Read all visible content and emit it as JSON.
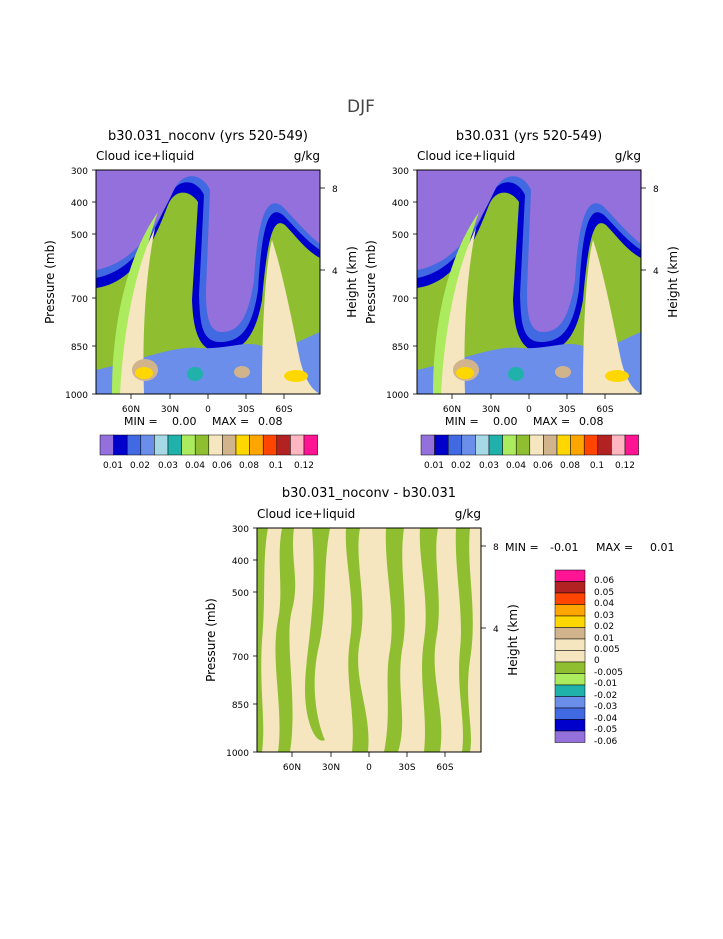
{
  "page_title": "DJF",
  "chart_data": [
    {
      "type": "contour",
      "title": "b30.031_noconv (yrs 520-549)",
      "left_subtitle": "Cloud ice+liquid",
      "right_subtitle": "g/kg",
      "ylabel": "Pressure (mb)",
      "y2label": "Height (km)",
      "x_ticks": [
        "60N",
        "30N",
        "0",
        "30S",
        "60S"
      ],
      "y_ticks": [
        "300",
        "400",
        "500",
        "700",
        "850",
        "1000"
      ],
      "y2_ticks": [
        "8",
        "4"
      ],
      "min_label": "MIN =",
      "min_value": "0.00",
      "max_label": "MAX =",
      "max_value": "0.08",
      "colorbar_labels": [
        "0.01",
        "0.02",
        "0.03",
        "0.04",
        "0.06",
        "0.08",
        "0.1",
        "0.12"
      ],
      "colorbar_colors": [
        "#9370DB",
        "#0000CD",
        "#4169E1",
        "#6A8EEA",
        "#A7D8E6",
        "#20B2AA",
        "#ADEB5E",
        "#8FBF30",
        "#F5E6C0",
        "#D2B48C",
        "#FFD700",
        "#FFA500",
        "#FF4500",
        "#B22222",
        "#FFB6C1",
        "#FF1493"
      ]
    },
    {
      "type": "contour",
      "title": "b30.031 (yrs 520-549)",
      "left_subtitle": "Cloud ice+liquid",
      "right_subtitle": "g/kg",
      "ylabel": "Pressure (mb)",
      "y2label": "Height (km)",
      "x_ticks": [
        "60N",
        "30N",
        "0",
        "30S",
        "60S"
      ],
      "y_ticks": [
        "300",
        "400",
        "500",
        "700",
        "850",
        "1000"
      ],
      "y2_ticks": [
        "8",
        "4"
      ],
      "min_label": "MIN =",
      "min_value": "0.00",
      "max_label": "MAX =",
      "max_value": "0.08",
      "colorbar_labels": [
        "0.01",
        "0.02",
        "0.03",
        "0.04",
        "0.06",
        "0.08",
        "0.1",
        "0.12"
      ],
      "colorbar_colors": [
        "#9370DB",
        "#0000CD",
        "#4169E1",
        "#6A8EEA",
        "#A7D8E6",
        "#20B2AA",
        "#ADEB5E",
        "#8FBF30",
        "#F5E6C0",
        "#D2B48C",
        "#FFD700",
        "#FFA500",
        "#FF4500",
        "#B22222",
        "#FFB6C1",
        "#FF1493"
      ]
    },
    {
      "type": "contour",
      "title": "b30.031_noconv - b30.031",
      "left_subtitle": "Cloud ice+liquid",
      "right_subtitle": "g/kg",
      "ylabel": "Pressure (mb)",
      "y2label": "Height (km)",
      "x_ticks": [
        "60N",
        "30N",
        "0",
        "30S",
        "60S"
      ],
      "y_ticks": [
        "300",
        "400",
        "500",
        "700",
        "850",
        "1000"
      ],
      "y2_ticks": [
        "8",
        "4"
      ],
      "min_label": "MIN =",
      "min_value": "-0.01",
      "max_label": "MAX =",
      "max_value": "0.01",
      "colorbar_labels": [
        "0.06",
        "0.05",
        "0.04",
        "0.03",
        "0.02",
        "0.01",
        "0.005",
        "0",
        "-0.005",
        "-0.01",
        "-0.02",
        "-0.03",
        "-0.04",
        "-0.05",
        "-0.06"
      ],
      "colorbar_colors": [
        "#FF1493",
        "#B22222",
        "#FF4500",
        "#FFA500",
        "#FFD700",
        "#D2B48C",
        "#F5E6C0",
        "#F5E6C0",
        "#8FBF30",
        "#ADEB5E",
        "#20B2AA",
        "#6A8EEA",
        "#4169E1",
        "#0000CD",
        "#9370DB"
      ]
    }
  ]
}
